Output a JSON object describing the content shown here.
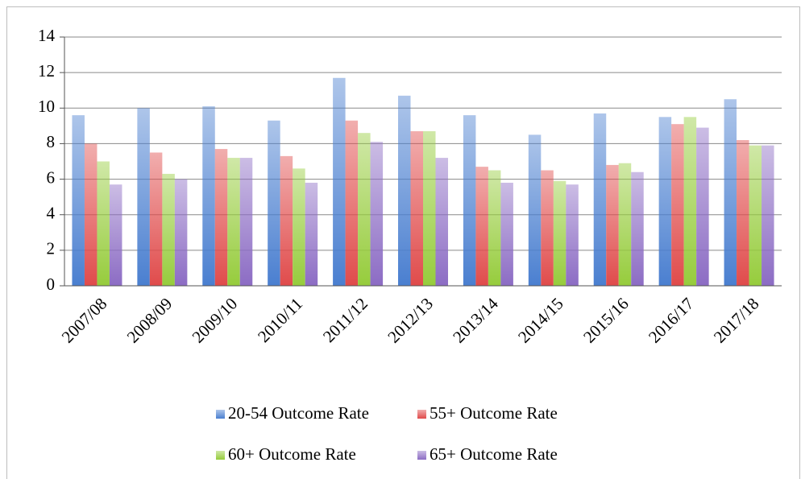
{
  "chart_data": {
    "type": "bar",
    "categories": [
      "2007/08",
      "2008/09",
      "2009/10",
      "2010/11",
      "2011/12",
      "2012/13",
      "2013/14",
      "2014/15",
      "2015/16",
      "2016/17",
      "2017/18"
    ],
    "series": [
      {
        "name": "20-54 Outcome Rate",
        "color": "#4a7fd0",
        "values": [
          9.6,
          10.0,
          10.1,
          9.3,
          11.7,
          10.7,
          9.6,
          8.5,
          9.7,
          9.5,
          10.5
        ]
      },
      {
        "name": "55+ Outcome Rate",
        "color": "#e04b4b",
        "values": [
          8.0,
          7.5,
          7.7,
          7.3,
          9.3,
          8.7,
          6.7,
          6.5,
          6.8,
          9.1,
          8.2
        ]
      },
      {
        "name": "60+ Outcome Rate",
        "color": "#96cc3c",
        "values": [
          7.0,
          6.3,
          7.2,
          6.6,
          8.6,
          8.7,
          6.5,
          5.9,
          6.9,
          9.5,
          7.9
        ]
      },
      {
        "name": "65+ Outcome Rate",
        "color": "#8c6cc4",
        "values": [
          5.7,
          6.0,
          7.2,
          5.8,
          8.1,
          7.2,
          5.8,
          5.7,
          6.4,
          8.9,
          7.9
        ]
      }
    ],
    "ylim": [
      0,
      14
    ],
    "yticks": [
      0,
      2,
      4,
      6,
      8,
      10,
      12,
      14
    ],
    "grid": true,
    "legend": "bottom"
  }
}
